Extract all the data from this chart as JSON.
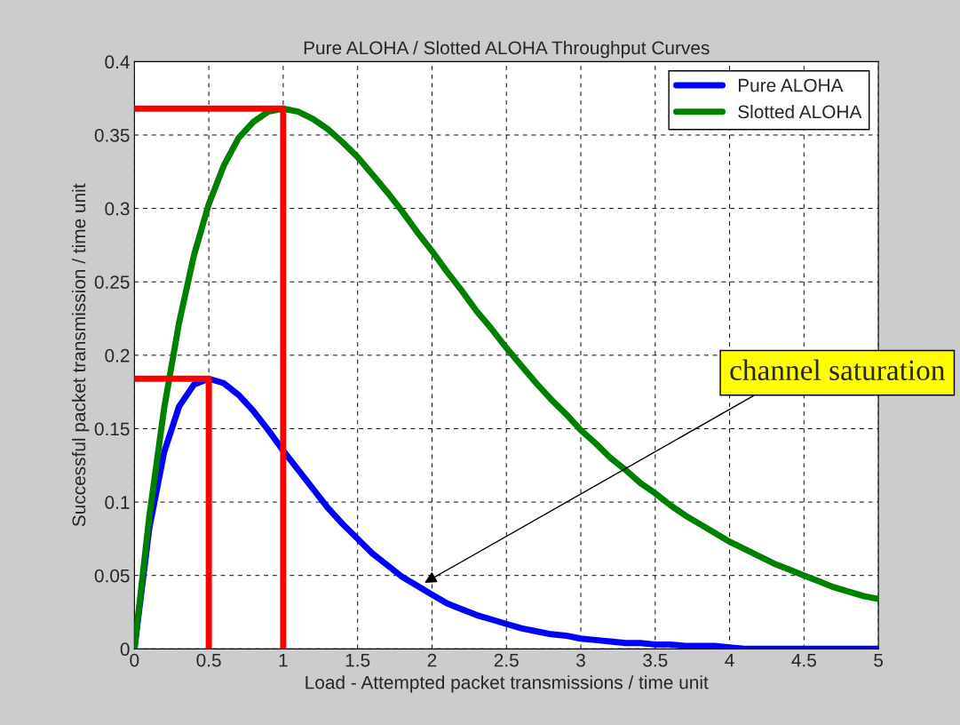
{
  "chart_data": {
    "type": "line",
    "title": "Pure ALOHA / Slotted ALOHA Throughput Curves",
    "xlabel": "Load - Attempted packet transmissions / time unit",
    "ylabel": "Successful packet transmission / time unit",
    "x": [
      0,
      0.1,
      0.2,
      0.3,
      0.4,
      0.5,
      0.6,
      0.7,
      0.8,
      0.9,
      1,
      1.1,
      1.2,
      1.3,
      1.4,
      1.5,
      1.6,
      1.7,
      1.8,
      1.9,
      2,
      2.1,
      2.2,
      2.3,
      2.4,
      2.5,
      2.6,
      2.7,
      2.8,
      2.9,
      3,
      3.1,
      3.2,
      3.3,
      3.4,
      3.5,
      3.6,
      3.7,
      3.8,
      3.9,
      4,
      4.1,
      4.2,
      4.3,
      4.4,
      4.5,
      4.6,
      4.7,
      4.8,
      4.9,
      5
    ],
    "series": [
      {
        "name": "Pure ALOHA",
        "color": "#0000ff",
        "values": [
          0,
          0.082,
          0.134,
          0.165,
          0.18,
          0.184,
          0.181,
          0.173,
          0.162,
          0.149,
          0.135,
          0.122,
          0.109,
          0.096,
          0.085,
          0.075,
          0.065,
          0.057,
          0.049,
          0.043,
          0.037,
          0.031,
          0.027,
          0.023,
          0.02,
          0.017,
          0.014,
          0.012,
          0.01,
          0.009,
          0.007,
          0.006,
          0.005,
          0.004,
          0.004,
          0.003,
          0.003,
          0.002,
          0.002,
          0.002,
          0.001,
          0,
          0,
          0,
          0,
          0,
          0,
          0,
          0,
          0,
          0
        ]
      },
      {
        "name": "Slotted ALOHA",
        "color": "#008000",
        "values": [
          0,
          0.09,
          0.164,
          0.222,
          0.268,
          0.303,
          0.329,
          0.348,
          0.359,
          0.366,
          0.368,
          0.366,
          0.361,
          0.354,
          0.345,
          0.335,
          0.323,
          0.311,
          0.298,
          0.284,
          0.271,
          0.257,
          0.244,
          0.23,
          0.218,
          0.205,
          0.193,
          0.181,
          0.17,
          0.16,
          0.149,
          0.14,
          0.13,
          0.122,
          0.113,
          0.106,
          0.098,
          0.091,
          0.085,
          0.079,
          0.073,
          0.068,
          0.063,
          0.058,
          0.054,
          0.05,
          0.046,
          0.042,
          0.039,
          0.036,
          0.034
        ]
      },
      {
        "color": "#ff0000",
        "x": [
          0,
          0.5,
          0.5
        ],
        "values": [
          0.184,
          0.184,
          0
        ]
      },
      {
        "color": "#ff0000",
        "x": [
          0,
          1,
          1
        ],
        "values": [
          0.368,
          0.368,
          0
        ]
      }
    ],
    "annotations": [
      {
        "text": "channel saturation",
        "x": 1.95,
        "y": 0.045
      }
    ],
    "xlim": [
      0,
      5
    ],
    "xticks": [
      0,
      0.5,
      1,
      1.5,
      2,
      2.5,
      3,
      3.5,
      4,
      4.5,
      5
    ],
    "ylim": [
      0,
      0.4
    ],
    "yticks": [
      0,
      0.05,
      0.1,
      0.15,
      0.2,
      0.25,
      0.3,
      0.35,
      0.4
    ],
    "grid": true,
    "legend": "top right",
    "line_style": "solid",
    "marker": "none"
  }
}
